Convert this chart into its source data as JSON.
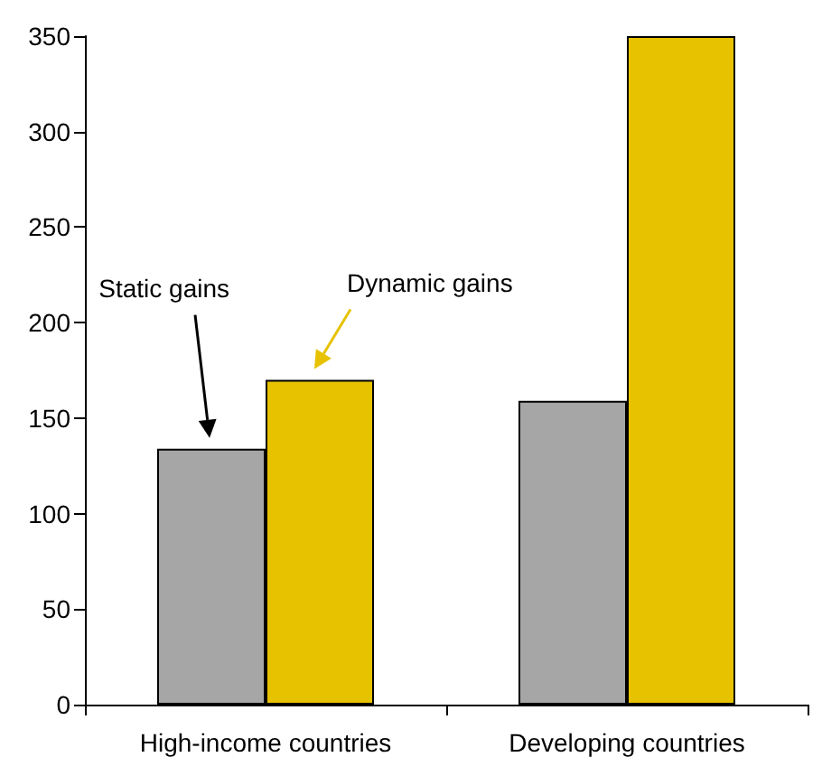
{
  "chart_data": {
    "type": "bar",
    "categories": [
      "High-income countries",
      "Developing countries"
    ],
    "series": [
      {
        "color": "#a6a6a6",
        "values": [
          134,
          159
        ]
      },
      {
        "color": "#e6c200",
        "values": [
          170,
          350
        ]
      }
    ],
    "ylim": [
      0,
      350
    ],
    "yticks": [
      0,
      50,
      100,
      150,
      200,
      250,
      300,
      350
    ],
    "grid": false,
    "annotations": [
      "Static gains",
      "Dynamic gains"
    ]
  }
}
